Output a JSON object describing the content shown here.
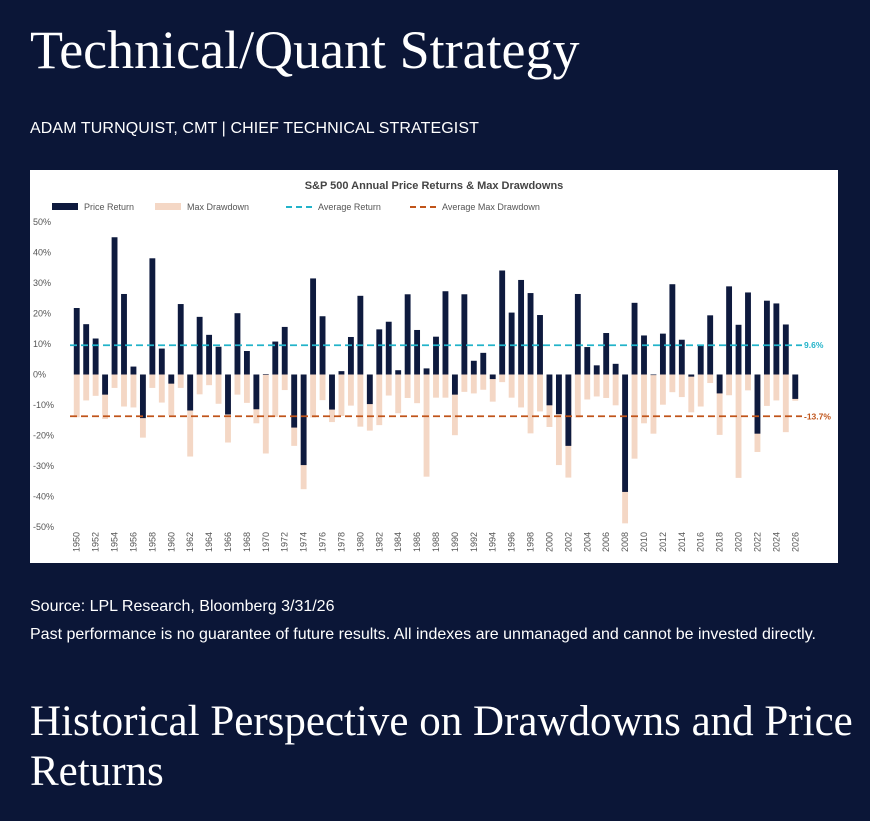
{
  "page": {
    "title": "Technical/Quant Strategy",
    "author": "ADAM TURNQUIST, CMT | CHIEF TECHNICAL STRATEGIST",
    "source": "Source: LPL Research, Bloomberg 3/31/26",
    "disclaimer": "Past performance is no guarantee of future results. All indexes are unmanaged and cannot be invested directly.",
    "section_title": "Historical Perspective on Drawdowns and Price Returns"
  },
  "colors": {
    "background": "#0b1637",
    "price_return": "#0e1a3e",
    "max_drawdown": "#f4d7c5",
    "average_return": "#22b3c9",
    "average_drawdown": "#c0541a"
  },
  "chart_data": {
    "type": "bar",
    "title": "S&P 500 Annual Price Returns & Max Drawdowns",
    "xlabel": "",
    "ylabel": "",
    "ylim": [
      -50,
      50
    ],
    "yticks": [
      50,
      40,
      30,
      20,
      10,
      0,
      -10,
      -20,
      -30,
      -40,
      -50
    ],
    "ytick_format": "percent",
    "legend_placement": "top-left",
    "grid": false,
    "x": [
      1950,
      1951,
      1952,
      1953,
      1954,
      1955,
      1956,
      1957,
      1958,
      1959,
      1960,
      1961,
      1962,
      1963,
      1964,
      1965,
      1966,
      1967,
      1968,
      1969,
      1970,
      1971,
      1972,
      1973,
      1974,
      1975,
      1976,
      1977,
      1978,
      1979,
      1980,
      1981,
      1982,
      1983,
      1984,
      1985,
      1986,
      1987,
      1988,
      1989,
      1990,
      1991,
      1992,
      1993,
      1994,
      1995,
      1996,
      1997,
      1998,
      1999,
      2000,
      2001,
      2002,
      2003,
      2004,
      2005,
      2006,
      2007,
      2008,
      2009,
      2010,
      2011,
      2012,
      2013,
      2014,
      2015,
      2016,
      2017,
      2018,
      2019,
      2020,
      2021,
      2022,
      2023,
      2024,
      2025,
      2026
    ],
    "x_tick_labels": [
      "1950",
      "1952",
      "1954",
      "1956",
      "1958",
      "1960",
      "1962",
      "1964",
      "1966",
      "1968",
      "1970",
      "1972",
      "1974",
      "1976",
      "1978",
      "1980",
      "1982",
      "1984",
      "1986",
      "1988",
      "1990",
      "1992",
      "1994",
      "1996",
      "1998",
      "2000",
      "2002",
      "2004",
      "2006",
      "2008",
      "2010",
      "2012",
      "2014",
      "2016",
      "2018",
      "2020",
      "2022",
      "2024",
      "2026"
    ],
    "series": [
      {
        "name": "Price Return",
        "values": [
          21.8,
          16.5,
          11.8,
          -6.6,
          45.0,
          26.4,
          2.6,
          -14.3,
          38.1,
          8.5,
          -3.0,
          23.1,
          -11.8,
          18.9,
          13.0,
          9.1,
          -13.1,
          20.1,
          7.7,
          -11.4,
          0.1,
          10.8,
          15.6,
          -17.4,
          -29.7,
          31.5,
          19.1,
          -11.5,
          1.1,
          12.3,
          25.8,
          -9.7,
          14.8,
          17.3,
          1.4,
          26.3,
          14.6,
          2.0,
          12.4,
          27.3,
          -6.6,
          26.3,
          4.5,
          7.1,
          -1.5,
          34.1,
          20.3,
          31.0,
          26.7,
          19.5,
          -10.1,
          -13.0,
          -23.4,
          26.4,
          9.0,
          3.0,
          13.6,
          3.5,
          -38.5,
          23.5,
          12.8,
          0.0,
          13.4,
          29.6,
          11.4,
          -0.7,
          9.5,
          19.4,
          -6.2,
          28.9,
          16.3,
          26.9,
          -19.4,
          24.2,
          23.3,
          16.4,
          -8.0
        ]
      },
      {
        "name": "Max Drawdown",
        "values": [
          -14.0,
          -8.5,
          -7.0,
          -14.6,
          -4.4,
          -10.5,
          -10.8,
          -20.7,
          -4.4,
          -9.2,
          -13.4,
          -4.4,
          -26.9,
          -6.5,
          -3.5,
          -9.6,
          -22.3,
          -6.6,
          -9.3,
          -16.0,
          -25.9,
          -13.9,
          -5.1,
          -23.4,
          -37.6,
          -14.1,
          -8.4,
          -15.6,
          -13.6,
          -10.2,
          -17.1,
          -18.4,
          -16.6,
          -6.9,
          -12.7,
          -7.7,
          -9.4,
          -33.5,
          -7.6,
          -7.6,
          -19.9,
          -5.7,
          -6.2,
          -5.0,
          -8.9,
          -2.5,
          -7.6,
          -10.8,
          -19.3,
          -12.1,
          -17.2,
          -29.7,
          -33.8,
          -14.1,
          -8.2,
          -7.2,
          -7.7,
          -10.1,
          -48.8,
          -27.6,
          -16.0,
          -19.4,
          -9.9,
          -5.8,
          -7.4,
          -12.4,
          -10.5,
          -2.8,
          -19.8,
          -6.8,
          -33.9,
          -5.2,
          -25.4,
          -10.3,
          -8.5,
          -18.9,
          -8.6
        ]
      }
    ],
    "reference_lines": [
      {
        "name": "Average Return",
        "value": 9.6,
        "label": "9.6%"
      },
      {
        "name": "Average Max Drawdown",
        "value": -13.7,
        "label": "-13.7%"
      }
    ]
  }
}
